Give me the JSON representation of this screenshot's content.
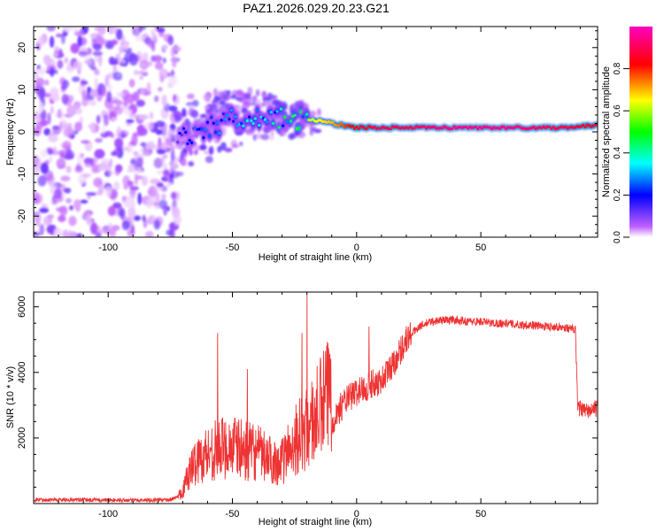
{
  "title": "PAZ1.2026.029.20.23.G21",
  "chart_data": [
    {
      "type": "heatmap",
      "title": "PAZ1.2026.029.20.23.G21",
      "xlabel": "Height of straight line (km)",
      "ylabel": "Frequency (Hz)",
      "xlim": [
        -130,
        97
      ],
      "ylim": [
        -25,
        25
      ],
      "xticks": [
        -100,
        -50,
        0,
        50
      ],
      "yticks": [
        -20,
        -10,
        0,
        10,
        20
      ],
      "colorbar": {
        "label": "Normalized spectral amplitude",
        "range": [
          0,
          1
        ],
        "ticks": [
          0.0,
          0.2,
          0.4,
          0.6,
          0.8
        ],
        "colors": [
          "#ffffff",
          "#c060ff",
          "#0000ff",
          "#00ffff",
          "#00ff00",
          "#ffff00",
          "#ff0000",
          "#ff00c0"
        ]
      },
      "ridge": {
        "x": [
          -70,
          -60,
          -50,
          -40,
          -30,
          -20,
          -10,
          0,
          10,
          20,
          40,
          60,
          80,
          97
        ],
        "freq": [
          -1,
          1,
          3,
          4,
          3,
          3,
          2,
          1,
          1,
          1,
          1,
          1,
          1,
          1.5
        ],
        "amplitude": [
          0.25,
          0.3,
          0.35,
          0.4,
          0.5,
          0.6,
          0.7,
          0.85,
          0.9,
          0.9,
          0.95,
          0.95,
          0.9,
          0.85
        ]
      },
      "noise_region": {
        "x_range": [
          -130,
          -72
        ],
        "freq_range": [
          -25,
          25
        ],
        "amplitude": 0.2
      }
    },
    {
      "type": "line",
      "xlabel": "Height of straight line (km)",
      "ylabel": "SNR (10 * v/v)",
      "xlim": [
        -130,
        97
      ],
      "ylim": [
        0,
        6450
      ],
      "xticks": [
        -100,
        -50,
        0,
        50
      ],
      "yticks": [
        2000,
        4000,
        6000
      ],
      "color": "#ee3333",
      "series": [
        {
          "name": "SNR",
          "x": [
            -130,
            -110,
            -90,
            -75,
            -70,
            -68,
            -65,
            -60,
            -55,
            -50,
            -45,
            -40,
            -35,
            -30,
            -25,
            -20,
            -15,
            -10,
            -5,
            0,
            5,
            10,
            15,
            20,
            25,
            30,
            35,
            40,
            45,
            50,
            55,
            60,
            65,
            70,
            75,
            80,
            85,
            88,
            89,
            92,
            97
          ],
          "y": [
            120,
            110,
            100,
            120,
            250,
            600,
            900,
            1100,
            1200,
            1250,
            1150,
            1100,
            950,
            900,
            1400,
            1600,
            2000,
            2500,
            3100,
            3400,
            3600,
            3750,
            4300,
            5000,
            5400,
            5550,
            5600,
            5600,
            5550,
            5550,
            5500,
            5500,
            5450,
            5450,
            5400,
            5400,
            5350,
            5300,
            2950,
            2800,
            2900
          ]
        }
      ],
      "spikes": [
        {
          "x": -56,
          "y": 5200
        },
        {
          "x": -44,
          "y": 4100
        },
        {
          "x": -22,
          "y": 5200
        },
        {
          "x": -20,
          "y": 6400
        },
        {
          "x": 5,
          "y": 5400
        }
      ]
    }
  ]
}
